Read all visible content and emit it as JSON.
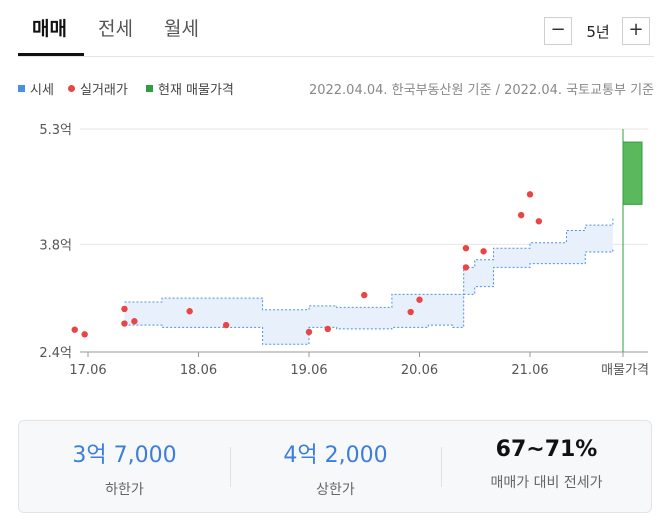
{
  "tabs": [
    {
      "label": "매매",
      "active": true
    },
    {
      "label": "전세",
      "active": false
    },
    {
      "label": "월세",
      "active": false
    }
  ],
  "period": {
    "minus": "−",
    "label": "5년",
    "plus": "+"
  },
  "legend": [
    {
      "label": "시세",
      "color": "#4a90e2",
      "shape": "square"
    },
    {
      "label": "실거래가",
      "color": "#e94545",
      "shape": "dot"
    },
    {
      "label": "현재 매물가격",
      "color": "#2e9e3e",
      "shape": "square"
    }
  ],
  "source_note": "2022.04.04. 한국부동산원 기준 / 2022.04. 국토교통부 기준",
  "chart_data": {
    "type": "area",
    "y_ticks": [
      {
        "value": 2.4,
        "label": "2.4억"
      },
      {
        "value": 3.8,
        "label": "3.8억"
      },
      {
        "value": 5.3,
        "label": "5.3억"
      }
    ],
    "ylim": [
      2.4,
      5.3
    ],
    "xlim": [
      2017.4,
      2022.3
    ],
    "x_ticks": [
      {
        "value": 2017.5,
        "label": "17.06"
      },
      {
        "value": 2018.5,
        "label": "18.06"
      },
      {
        "value": 2019.5,
        "label": "19.06"
      },
      {
        "value": 2020.5,
        "label": "20.06"
      },
      {
        "value": 2021.5,
        "label": "21.06"
      }
    ],
    "listing_axis_label": "매물가격",
    "grid": true,
    "price_band": [
      {
        "x": 2017.83,
        "low": 2.75,
        "high": 3.05
      },
      {
        "x": 2018.0,
        "low": 2.75,
        "high": 3.05
      },
      {
        "x": 2018.17,
        "low": 2.72,
        "high": 3.1
      },
      {
        "x": 2018.42,
        "low": 2.72,
        "high": 3.1
      },
      {
        "x": 2018.58,
        "low": 2.72,
        "high": 3.1
      },
      {
        "x": 2018.83,
        "low": 2.72,
        "high": 3.1
      },
      {
        "x": 2019.0,
        "low": 2.72,
        "high": 3.1
      },
      {
        "x": 2019.08,
        "low": 2.5,
        "high": 2.95
      },
      {
        "x": 2019.42,
        "low": 2.5,
        "high": 2.95
      },
      {
        "x": 2019.5,
        "low": 2.72,
        "high": 3.0
      },
      {
        "x": 2019.67,
        "low": 2.72,
        "high": 3.0
      },
      {
        "x": 2019.75,
        "low": 2.7,
        "high": 2.98
      },
      {
        "x": 2020.17,
        "low": 2.7,
        "high": 2.98
      },
      {
        "x": 2020.25,
        "low": 2.72,
        "high": 3.15
      },
      {
        "x": 2020.33,
        "low": 2.72,
        "high": 3.15
      },
      {
        "x": 2020.5,
        "low": 2.72,
        "high": 3.15
      },
      {
        "x": 2020.58,
        "low": 2.75,
        "high": 3.15
      },
      {
        "x": 2020.75,
        "low": 2.75,
        "high": 3.15
      },
      {
        "x": 2020.8,
        "low": 2.72,
        "high": 3.15
      },
      {
        "x": 2020.9,
        "low": 3.15,
        "high": 3.5
      },
      {
        "x": 2021.0,
        "low": 3.25,
        "high": 3.6
      },
      {
        "x": 2021.17,
        "low": 3.5,
        "high": 3.75
      },
      {
        "x": 2021.42,
        "low": 3.5,
        "high": 3.75
      },
      {
        "x": 2021.5,
        "low": 3.55,
        "high": 3.82
      },
      {
        "x": 2021.83,
        "low": 3.55,
        "high": 3.98
      },
      {
        "x": 2022.0,
        "low": 3.7,
        "high": 4.05
      },
      {
        "x": 2022.25,
        "low": 3.75,
        "high": 4.15
      }
    ],
    "transactions": [
      {
        "x": 2017.38,
        "y": 2.69
      },
      {
        "x": 2017.47,
        "y": 2.63
      },
      {
        "x": 2017.83,
        "y": 2.96
      },
      {
        "x": 2017.83,
        "y": 2.77
      },
      {
        "x": 2017.92,
        "y": 2.8
      },
      {
        "x": 2018.42,
        "y": 2.93
      },
      {
        "x": 2018.75,
        "y": 2.75
      },
      {
        "x": 2019.5,
        "y": 2.66
      },
      {
        "x": 2019.67,
        "y": 2.7
      },
      {
        "x": 2020.0,
        "y": 3.14
      },
      {
        "x": 2020.42,
        "y": 2.92
      },
      {
        "x": 2020.5,
        "y": 3.08
      },
      {
        "x": 2020.92,
        "y": 3.5
      },
      {
        "x": 2020.92,
        "y": 3.75
      },
      {
        "x": 2021.08,
        "y": 3.71
      },
      {
        "x": 2021.42,
        "y": 4.18
      },
      {
        "x": 2021.5,
        "y": 4.45
      },
      {
        "x": 2021.58,
        "y": 4.1
      }
    ],
    "current_listing": {
      "low": 4.32,
      "high": 5.13
    }
  },
  "summary": [
    {
      "value": "3억 7,000",
      "label": "하한가",
      "style": "blue"
    },
    {
      "value": "4억 2,000",
      "label": "상한가",
      "style": "blue"
    },
    {
      "value": "67~71%",
      "label": "매매가 대비 전세가",
      "style": "dark"
    }
  ]
}
